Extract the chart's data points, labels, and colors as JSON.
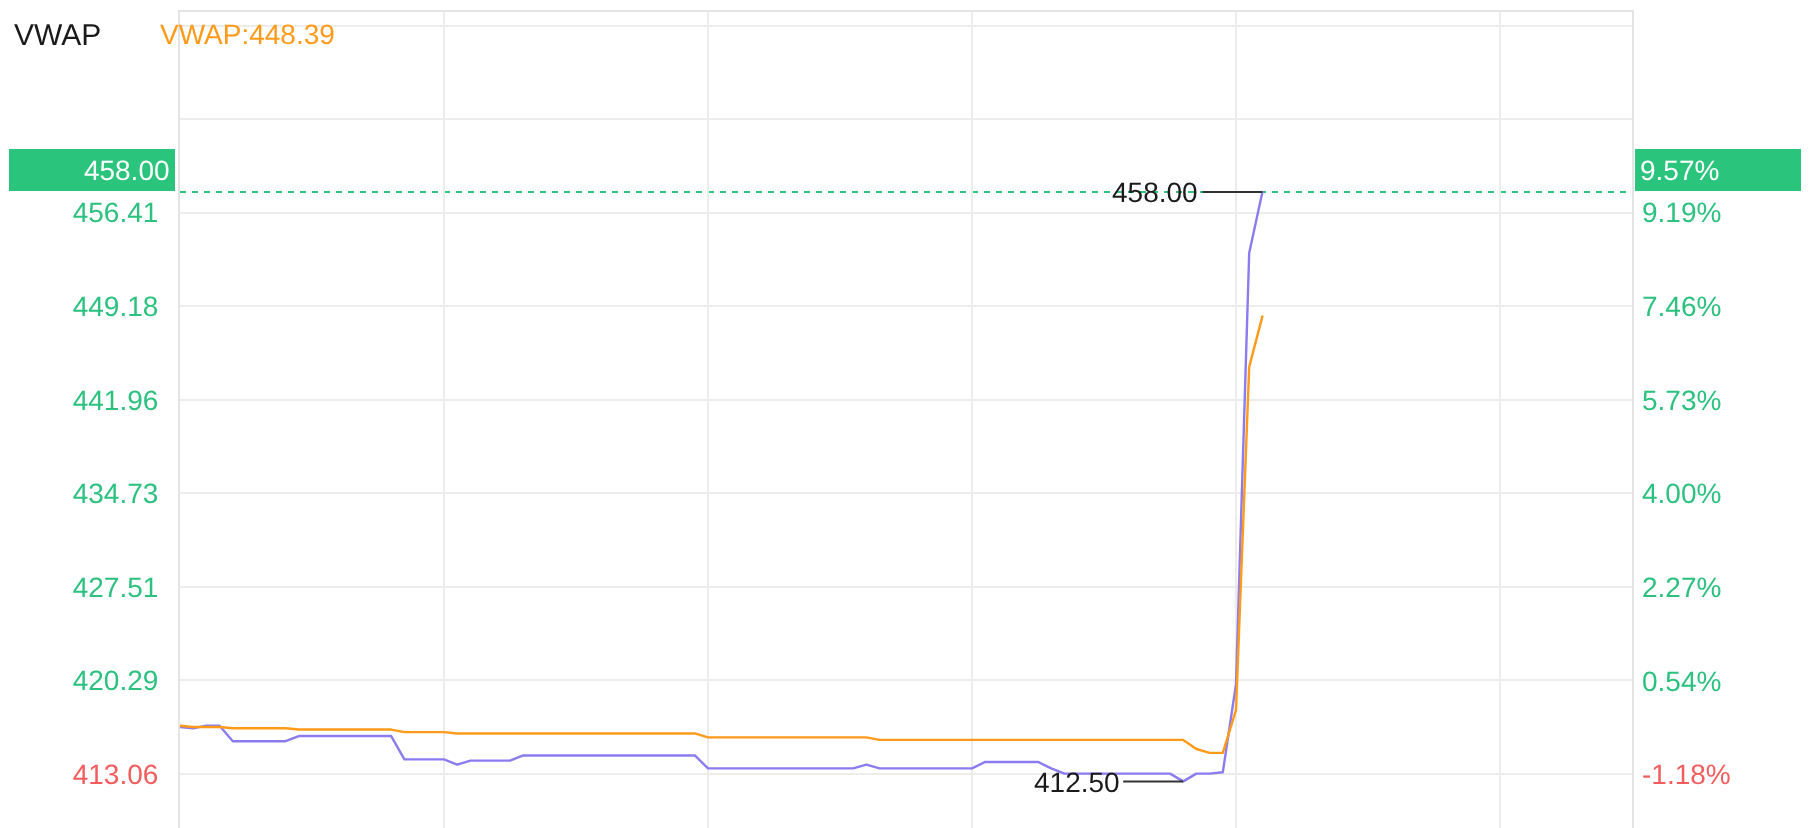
{
  "chart_data": {
    "type": "line",
    "title": "VWAP",
    "categories": [
      null,
      null,
      null,
      null,
      null,
      null,
      null,
      null,
      null,
      null,
      null,
      null,
      null,
      null,
      null,
      null,
      null,
      null,
      null,
      null,
      null,
      null,
      null,
      null,
      null,
      null,
      null,
      null,
      null,
      null,
      null,
      null,
      null,
      null,
      null,
      null,
      null,
      null,
      null,
      null,
      null,
      null,
      null,
      null,
      null,
      null,
      null,
      null,
      null,
      null,
      null,
      null,
      null,
      null,
      null,
      null,
      null,
      null,
      null,
      null,
      null,
      null,
      null,
      null,
      null,
      null,
      null,
      null,
      null,
      null,
      null,
      null,
      null,
      null,
      null,
      null,
      null,
      null,
      null,
      null,
      null,
      null,
      null,
      null,
      null,
      null,
      null,
      null,
      null,
      null,
      null,
      null,
      null,
      null,
      null,
      null,
      null,
      null,
      null,
      null,
      null,
      null,
      null,
      null,
      null,
      null,
      null,
      null,
      null,
      null,
      null
    ],
    "series": [
      {
        "color": "#8a7cee",
        "values": [
          416.7,
          416.6,
          416.8,
          416.8,
          415.6,
          415.6,
          415.6,
          415.6,
          415.6,
          416.0,
          416.0,
          416.0,
          416.0,
          416.0,
          416.0,
          416.0,
          416.0,
          414.2,
          414.2,
          414.2,
          414.2,
          413.8,
          414.1,
          414.1,
          414.1,
          414.1,
          414.5,
          414.5,
          414.5,
          414.5,
          414.5,
          414.5,
          414.5,
          414.5,
          414.5,
          414.5,
          414.5,
          414.5,
          414.5,
          414.5,
          413.5,
          413.5,
          413.5,
          413.5,
          413.5,
          413.5,
          413.5,
          413.5,
          413.5,
          413.5,
          413.5,
          413.5,
          413.8,
          413.5,
          413.5,
          413.5,
          413.5,
          413.5,
          413.5,
          413.5,
          413.5,
          414.0,
          414.0,
          414.0,
          414.0,
          414.0,
          413.5,
          413.1,
          413.1,
          413.1,
          413.1,
          413.1,
          413.1,
          413.1,
          413.1,
          413.1,
          412.5,
          413.1,
          413.1,
          413.2,
          420.0,
          453.3,
          458.0,
          null,
          null,
          null,
          null,
          null,
          null,
          null,
          null,
          null,
          null,
          null,
          null,
          null,
          null,
          null,
          null,
          null,
          null,
          null,
          null,
          null,
          null,
          null,
          null,
          null,
          null,
          null,
          null
        ]
      },
      {
        "name": "VWAP:448.39",
        "color": "#ff9a1a",
        "values": [
          416.8,
          416.7,
          416.7,
          416.7,
          416.6,
          416.6,
          416.6,
          416.6,
          416.6,
          416.5,
          416.5,
          416.5,
          416.5,
          416.5,
          416.5,
          416.5,
          416.5,
          416.3,
          416.3,
          416.3,
          416.3,
          416.2,
          416.2,
          416.2,
          416.2,
          416.2,
          416.2,
          416.2,
          416.2,
          416.2,
          416.2,
          416.2,
          416.2,
          416.2,
          416.2,
          416.2,
          416.2,
          416.2,
          416.2,
          416.2,
          415.9,
          415.9,
          415.9,
          415.9,
          415.9,
          415.9,
          415.9,
          415.9,
          415.9,
          415.9,
          415.9,
          415.9,
          415.9,
          415.7,
          415.7,
          415.7,
          415.7,
          415.7,
          415.7,
          415.7,
          415.7,
          415.7,
          415.7,
          415.7,
          415.7,
          415.7,
          415.7,
          415.7,
          415.7,
          415.7,
          415.7,
          415.7,
          415.7,
          415.7,
          415.7,
          415.7,
          415.7,
          415.0,
          414.7,
          414.7,
          418.0,
          444.5,
          448.4,
          null,
          null,
          null,
          null,
          null,
          null,
          null,
          null,
          null,
          null,
          null,
          null,
          null,
          null,
          null,
          null,
          null,
          null,
          null,
          null,
          null,
          null,
          null,
          null,
          null,
          null,
          null,
          null
        ]
      }
    ],
    "ylim": [
      408.9,
      471.9
    ],
    "yticks": [
      413.06,
      420.29,
      427.51,
      434.73,
      441.96,
      449.18,
      456.41,
      {
        "value": 463.63,
        "label": null
      },
      {
        "value": 470.85,
        "label": null
      }
    ],
    "y2lim": [
      -2.18,
      12.89
    ],
    "y2ticks": [
      {
        "value": -1.18,
        "label": "-1.18%"
      },
      {
        "value": 0.54,
        "label": "0.54%"
      },
      {
        "value": 2.27,
        "label": "2.27%"
      },
      {
        "value": 4.0,
        "label": "4.00%"
      },
      {
        "value": 5.73,
        "label": "5.73%"
      },
      {
        "value": 7.46,
        "label": "7.46%"
      },
      {
        "value": 9.19,
        "label": "9.19%"
      }
    ],
    "ref_lines": [
      {
        "axis": "y",
        "value": 458.0,
        "label": "458.00",
        "color": "#2bc47d",
        "line_style": "dashed"
      }
    ],
    "annotations": [
      {
        "text": "458.00",
        "y": 458.0
      },
      {
        "text": "412.50",
        "y": 412.5
      },
      "9.57%"
    ],
    "grid": true,
    "tick_labels": "y"
  }
}
